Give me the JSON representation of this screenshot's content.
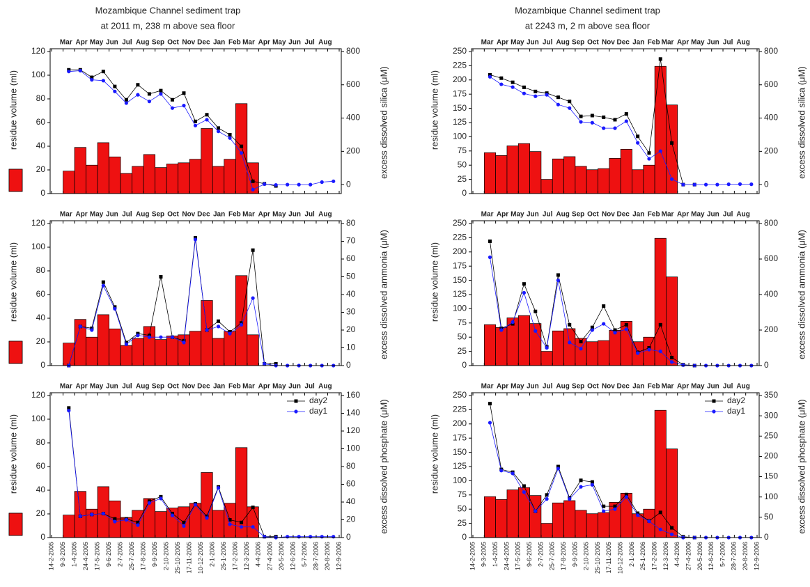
{
  "chart_data": [
    {
      "type": "bar",
      "title": "Mozambique Channel sediment trap",
      "subtitle": "at 2011 m, 238 m above sea floor",
      "top_labels": [
        "Mar",
        "Apr",
        "May",
        "Jun",
        "Jul",
        "Aug",
        "Sep",
        "Oct",
        "Nov",
        "Dec",
        "Jan",
        "Feb",
        "Mar",
        "Apr",
        "May",
        "Jun",
        "Jul",
        "Aug"
      ],
      "xticks": [
        "14-2-2005",
        "9-3-2005",
        "1-4-2005",
        "24-4-2005",
        "17-5-2005",
        "9-6-2005",
        "2-7-2005",
        "25-7-2005",
        "17-8-2005",
        "9-9-2005",
        "2-10-2005",
        "25-10-2005",
        "17-11-2005",
        "10-12-2005",
        "2-1-2006",
        "25-1-2006",
        "17-2-2006",
        "12-3-2006",
        "4-4-2006",
        "27-4-2006",
        "20-5-2006",
        "12-6-2006",
        "5-7-2006",
        "28-7-2006",
        "20-8-2006",
        "12-9-2006"
      ],
      "xtick_labels_shown": false,
      "ylabel": "residue volume (ml)",
      "y2label": "excess dissolved silica (μM)",
      "ylim": [
        0,
        120
      ],
      "yticks": [
        0,
        20,
        40,
        60,
        80,
        100,
        120
      ],
      "y2lim": [
        -54,
        800
      ],
      "y2ticks": [
        0,
        200,
        400,
        600,
        800
      ],
      "series": [
        {
          "type": "bar",
          "color": "#ee1111",
          "values": [
            null,
            19,
            39,
            24,
            43,
            31,
            17,
            23,
            33,
            22,
            25,
            26,
            29,
            55,
            23,
            29,
            76,
            26,
            null,
            null,
            null,
            null,
            null,
            null,
            null
          ]
        },
        {
          "type": "line",
          "color": "#000000",
          "marker": "square",
          "axis": "y2",
          "values": [
            null,
            690,
            690,
            645,
            680,
            590,
            510,
            600,
            545,
            565,
            510,
            550,
            380,
            420,
            340,
            300,
            230,
            20,
            5,
            -8,
            null,
            null,
            null,
            null,
            null
          ]
        },
        {
          "type": "line",
          "color": "#1a1aff",
          "marker": "circle",
          "axis": "y2",
          "values": [
            null,
            680,
            685,
            630,
            625,
            560,
            490,
            540,
            500,
            545,
            460,
            475,
            355,
            390,
            320,
            280,
            190,
            -30,
            3,
            -2,
            0,
            0,
            0,
            15,
            20
          ]
        }
      ]
    },
    {
      "type": "bar",
      "title": "Mozambique Channel sediment trap",
      "subtitle": "at 2243 m, 2 m above sea floor",
      "top_labels": [
        "Mar",
        "Apr",
        "May",
        "Jun",
        "Jul",
        "Aug",
        "Sep",
        "Oct",
        "Nov",
        "Dec",
        "Jan",
        "Feb",
        "Mar",
        "Apr",
        "May",
        "Jun",
        "Jul",
        "Aug"
      ],
      "xticks": [
        "14-2-2005",
        "9-3-2005",
        "1-4-2005",
        "24-4-2005",
        "17-5-2005",
        "9-6-2005",
        "2-7-2005",
        "25-7-2005",
        "17-8-2005",
        "9-9-2005",
        "2-10-2005",
        "25-10-2005",
        "17-11-2005",
        "10-12-2005",
        "2-1-2006",
        "25-1-2006",
        "17-2-2006",
        "12-3-2006",
        "4-4-2006",
        "27-4-2006",
        "20-5-2006",
        "12-6-2006",
        "5-7-2006",
        "28-7-2006",
        "20-8-2006",
        "12-9-2006"
      ],
      "xtick_labels_shown": false,
      "ylabel": "residue volume (ml)",
      "y2label": "excess dissolved silica (μM)",
      "ylim": [
        0,
        250
      ],
      "yticks": [
        0,
        25,
        50,
        75,
        100,
        125,
        150,
        175,
        200,
        225,
        250
      ],
      "y2lim": [
        -54,
        800
      ],
      "y2ticks": [
        0,
        200,
        400,
        600,
        800
      ],
      "series": [
        {
          "type": "bar",
          "color": "#ee1111",
          "values": [
            null,
            72,
            67,
            84,
            88,
            74,
            25,
            61,
            65,
            48,
            42,
            44,
            62,
            78,
            42,
            50,
            224,
            156,
            null,
            null,
            null,
            null,
            null,
            null,
            null
          ]
        },
        {
          "type": "line",
          "color": "#000000",
          "marker": "square",
          "axis": "y2",
          "values": [
            null,
            660,
            640,
            615,
            585,
            560,
            550,
            525,
            500,
            410,
            415,
            405,
            390,
            425,
            290,
            190,
            755,
            250,
            0,
            0,
            null,
            null,
            null,
            null,
            null
          ]
        },
        {
          "type": "line",
          "color": "#1a1aff",
          "marker": "circle",
          "axis": "y2",
          "values": [
            null,
            648,
            603,
            586,
            548,
            531,
            540,
            481,
            460,
            377,
            372,
            339,
            339,
            381,
            251,
            155,
            201,
            33,
            0,
            0,
            0,
            0,
            2,
            3,
            2
          ]
        }
      ]
    },
    {
      "type": "bar",
      "top_labels": [
        "Mar",
        "Apr",
        "May",
        "Jun",
        "Jul",
        "Aug",
        "Sep",
        "Oct",
        "Nov",
        "Dec",
        "Jan",
        "Feb",
        "Mar",
        "Apr",
        "May",
        "Jun",
        "Jul",
        "Aug"
      ],
      "xticks": [
        "14-2-2005",
        "9-3-2005",
        "1-4-2005",
        "24-4-2005",
        "17-5-2005",
        "9-6-2005",
        "2-7-2005",
        "25-7-2005",
        "17-8-2005",
        "9-9-2005",
        "2-10-2005",
        "25-10-2005",
        "17-11-2005",
        "10-12-2005",
        "2-1-2006",
        "25-1-2006",
        "17-2-2006",
        "12-3-2006",
        "4-4-2006",
        "27-4-2006",
        "20-5-2006",
        "12-6-2006",
        "5-7-2006",
        "28-7-2006",
        "20-8-2006",
        "12-9-2006"
      ],
      "xtick_labels_shown": false,
      "ylabel": "residue volume (ml)",
      "y2label": "excess dissolved ammonia (μM)",
      "ylim": [
        0,
        120
      ],
      "yticks": [
        0,
        20,
        40,
        60,
        80,
        100,
        120
      ],
      "y2lim": [
        0,
        80
      ],
      "y2ticks": [
        0,
        10,
        20,
        30,
        40,
        50,
        60,
        70,
        80
      ],
      "series": [
        {
          "type": "bar",
          "color": "#ee1111",
          "values": [
            null,
            19,
            39,
            24,
            43,
            31,
            17,
            23,
            33,
            22,
            25,
            26,
            29,
            55,
            23,
            29,
            76,
            26,
            null,
            null,
            null,
            null,
            null,
            null,
            null
          ]
        },
        {
          "type": "line",
          "color": "#000000",
          "marker": "square",
          "axis": "y2",
          "values": [
            null,
            0,
            22,
            21,
            47,
            33,
            13,
            18,
            17,
            50,
            16,
            14,
            72,
            20,
            25,
            19,
            24,
            65,
            1,
            1,
            null,
            null,
            null,
            null,
            null
          ]
        },
        {
          "type": "line",
          "color": "#1a1aff",
          "marker": "circle",
          "axis": "y2",
          "values": [
            null,
            0,
            22,
            20,
            45,
            32,
            12,
            17,
            16,
            16,
            16,
            13,
            71,
            20,
            22,
            18,
            23,
            38,
            1,
            0,
            0,
            0,
            0,
            0,
            0
          ]
        }
      ]
    },
    {
      "type": "bar",
      "top_labels": [
        "Mar",
        "Apr",
        "May",
        "Jun",
        "Jul",
        "Aug",
        "Sep",
        "Oct",
        "Nov",
        "Dec",
        "Jan",
        "Feb",
        "Mar",
        "Apr",
        "May",
        "Jun",
        "Jul",
        "Aug"
      ],
      "xticks": [
        "14-2-2005",
        "9-3-2005",
        "1-4-2005",
        "24-4-2005",
        "17-5-2005",
        "9-6-2005",
        "2-7-2005",
        "25-7-2005",
        "17-8-2005",
        "9-9-2005",
        "2-10-2005",
        "25-10-2005",
        "17-11-2005",
        "10-12-2005",
        "2-1-2006",
        "25-1-2006",
        "17-2-2006",
        "12-3-2006",
        "4-4-2006",
        "27-4-2006",
        "20-5-2006",
        "12-6-2006",
        "5-7-2006",
        "28-7-2006",
        "20-8-2006",
        "12-9-2006"
      ],
      "xtick_labels_shown": false,
      "ylabel": "residue volume (ml)",
      "y2label": "excess dissolved ammonia (μM)",
      "ylim": [
        0,
        250
      ],
      "yticks": [
        0,
        25,
        50,
        75,
        100,
        125,
        150,
        175,
        200,
        225,
        250
      ],
      "y2lim": [
        0,
        800
      ],
      "y2ticks": [
        0,
        200,
        400,
        600,
        800
      ],
      "series": [
        {
          "type": "bar",
          "color": "#ee1111",
          "values": [
            null,
            72,
            67,
            84,
            88,
            74,
            25,
            61,
            65,
            48,
            42,
            44,
            62,
            78,
            42,
            50,
            224,
            156,
            null,
            null,
            null,
            null,
            null,
            null,
            null
          ]
        },
        {
          "type": "line",
          "color": "#000000",
          "marker": "square",
          "axis": "y2",
          "values": [
            null,
            700,
            210,
            235,
            460,
            305,
            105,
            510,
            230,
            135,
            215,
            335,
            200,
            230,
            75,
            100,
            230,
            45,
            5,
            0,
            null,
            null,
            null,
            null,
            null
          ]
        },
        {
          "type": "line",
          "color": "#1a1aff",
          "marker": "circle",
          "axis": "y2",
          "values": [
            null,
            610,
            200,
            245,
            410,
            195,
            100,
            480,
            130,
            95,
            200,
            235,
            185,
            205,
            70,
            90,
            80,
            20,
            3,
            0,
            0,
            0,
            0,
            0,
            0
          ]
        }
      ]
    },
    {
      "type": "bar",
      "top_labels": [
        "Mar",
        "Apr",
        "May",
        "Jun",
        "Jul",
        "Aug",
        "Sep",
        "Oct",
        "Nov",
        "Dec",
        "Jan",
        "Feb",
        "Mar",
        "Apr",
        "May",
        "Jun",
        "Jul",
        "Aug"
      ],
      "xticks": [
        "14-2-2005",
        "9-3-2005",
        "1-4-2005",
        "24-4-2005",
        "17-5-2005",
        "9-6-2005",
        "2-7-2005",
        "25-7-2005",
        "17-8-2005",
        "9-9-2005",
        "2-10-2005",
        "25-10-2005",
        "17-11-2005",
        "10-12-2005",
        "2-1-2006",
        "25-1-2006",
        "17-2-2006",
        "12-3-2006",
        "4-4-2006",
        "27-4-2006",
        "20-5-2006",
        "12-6-2006",
        "5-7-2006",
        "28-7-2006",
        "20-8-2006",
        "12-9-2006"
      ],
      "xtick_labels_shown": true,
      "ylabel": "residue volume (ml)",
      "y2label": "excess dissolved phosphate (μM)",
      "ylim": [
        0,
        120
      ],
      "yticks": [
        0,
        20,
        40,
        60,
        80,
        100,
        120
      ],
      "y2lim": [
        0,
        160
      ],
      "y2ticks": [
        0,
        20,
        40,
        60,
        80,
        100,
        120,
        140,
        160
      ],
      "legend": "upper right",
      "series": [
        {
          "type": "bar",
          "color": "#ee1111",
          "values": [
            null,
            19,
            39,
            24,
            43,
            31,
            17,
            23,
            33,
            22,
            25,
            26,
            29,
            55,
            23,
            29,
            76,
            26,
            null,
            null,
            null,
            null,
            null,
            null,
            null
          ]
        },
        {
          "type": "line",
          "name": "day2",
          "color": "#000000",
          "marker": "square",
          "axis": "y2",
          "values": [
            null,
            146,
            24,
            26,
            27,
            21,
            21,
            17,
            41,
            46,
            27,
            17,
            38,
            24,
            57,
            20,
            17,
            34,
            1,
            1,
            null,
            null,
            null,
            null,
            null
          ]
        },
        {
          "type": "line",
          "name": "day1",
          "color": "#1a1aff",
          "marker": "circle",
          "axis": "y2",
          "values": [
            null,
            143,
            24,
            26,
            27,
            18,
            20,
            14,
            39,
            44,
            25,
            13,
            37,
            22,
            56,
            15,
            12,
            12,
            1,
            0,
            1,
            1,
            1,
            1,
            1
          ]
        }
      ]
    },
    {
      "type": "bar",
      "top_labels": [
        "Mar",
        "Apr",
        "May",
        "Jun",
        "Jul",
        "Aug",
        "Sep",
        "Oct",
        "Nov",
        "Dec",
        "Jan",
        "Feb",
        "Mar",
        "Apr",
        "May",
        "Jun",
        "Jul",
        "Aug"
      ],
      "xticks": [
        "14-2-2005",
        "9-3-2005",
        "1-4-2005",
        "24-4-2005",
        "17-5-2005",
        "9-6-2005",
        "2-7-2005",
        "25-7-2005",
        "17-8-2005",
        "9-9-2005",
        "2-10-2005",
        "25-10-2005",
        "17-11-2005",
        "10-12-2005",
        "2-1-2006",
        "25-1-2006",
        "17-2-2006",
        "12-3-2006",
        "4-4-2006",
        "27-4-2006",
        "20-5-2006",
        "12-6-2006",
        "5-7-2006",
        "28-7-2006",
        "20-8-2006",
        "12-9-2006"
      ],
      "xtick_labels_shown": true,
      "ylabel": "residue volume (ml)",
      "y2label": "excess dissolved phosphate (μM)",
      "ylim": [
        0,
        250
      ],
      "yticks": [
        0,
        25,
        50,
        75,
        100,
        125,
        150,
        175,
        200,
        225,
        250
      ],
      "y2lim": [
        0,
        350
      ],
      "y2ticks": [
        0,
        50,
        100,
        150,
        200,
        250,
        300,
        350
      ],
      "legend": "upper right",
      "series": [
        {
          "type": "bar",
          "color": "#ee1111",
          "values": [
            null,
            72,
            67,
            84,
            88,
            74,
            25,
            61,
            65,
            48,
            42,
            44,
            62,
            78,
            42,
            50,
            224,
            156,
            null,
            null,
            null,
            null,
            null,
            null,
            null
          ]
        },
        {
          "type": "line",
          "name": "day2",
          "color": "#000000",
          "marker": "square",
          "axis": "y2",
          "values": [
            null,
            330,
            168,
            161,
            127,
            65,
            105,
            175,
            98,
            141,
            137,
            77,
            77,
            106,
            60,
            41,
            62,
            24,
            2,
            0,
            null,
            null,
            null,
            null,
            null
          ]
        },
        {
          "type": "line",
          "name": "day1",
          "color": "#1a1aff",
          "marker": "circle",
          "axis": "y2",
          "values": [
            null,
            283,
            165,
            158,
            112,
            65,
            95,
            170,
            95,
            125,
            130,
            65,
            70,
            100,
            55,
            40,
            20,
            8,
            0,
            0,
            0,
            0,
            0,
            0,
            0
          ]
        }
      ]
    }
  ]
}
